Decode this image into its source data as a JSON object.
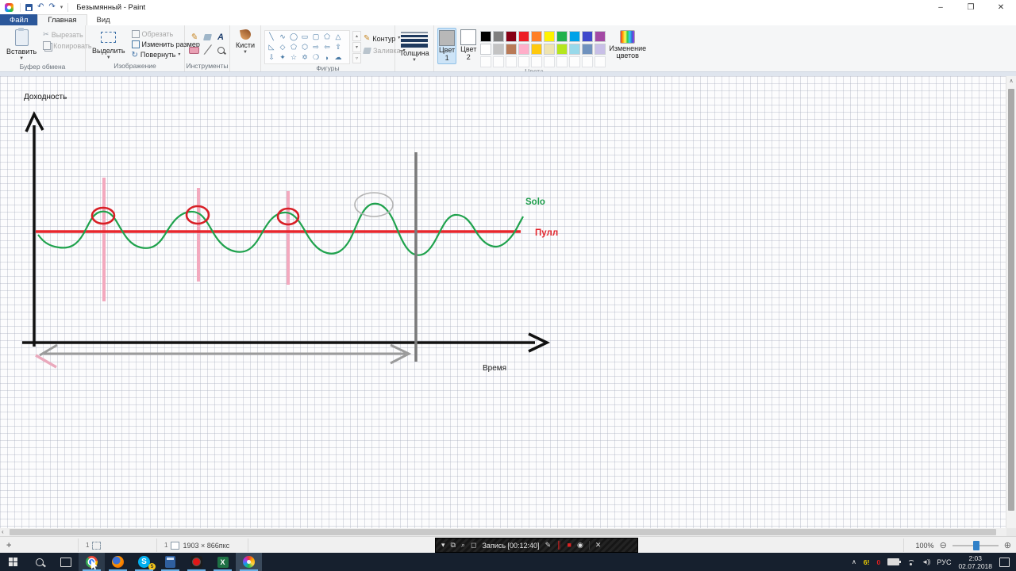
{
  "titlebar": {
    "title": "Безымянный - Paint"
  },
  "tabs": {
    "file": "Файл",
    "home": "Главная",
    "view": "Вид"
  },
  "ribbon": {
    "clipboard": {
      "label": "Буфер обмена",
      "paste": "Вставить",
      "cut": "Вырезать",
      "copy": "Копировать"
    },
    "image": {
      "label": "Изображение",
      "select": "Выделить",
      "crop": "Обрезать",
      "resize": "Изменить размер",
      "rotate": "Повернуть"
    },
    "tools": {
      "label": "Инструменты"
    },
    "brushes": {
      "label": "Кисти"
    },
    "shapes": {
      "label": "Фигуры",
      "outline": "Контур",
      "fill": "Заливка",
      "glyphs": [
        "╲",
        "∿",
        "◯",
        "▭",
        "▢",
        "⬠",
        "△",
        "◺",
        "◇",
        "⬠",
        "⬡",
        "⇨",
        "⇦",
        "⇧",
        "⇩",
        "✦",
        "☆",
        "✡",
        "❍",
        "◗",
        "☁"
      ]
    },
    "thickness": {
      "label": "Толщина"
    },
    "colors": {
      "label": "Цвета",
      "color1_line1": "Цвет",
      "color1_line2": "1",
      "color2_line1": "Цвет",
      "color2_line2": "2",
      "edit": "Изменение цветов",
      "color1_value": "#b8b8b8",
      "color2_value": "#ffffff",
      "palette_row1": [
        "#000000",
        "#7f7f7f",
        "#880015",
        "#ed1c24",
        "#ff7f27",
        "#fff200",
        "#22b14c",
        "#00a2e8",
        "#3f48cc",
        "#a349a4"
      ],
      "palette_row2": [
        "#ffffff",
        "#c3c3c3",
        "#b97a57",
        "#ffaec9",
        "#ffc90e",
        "#efe4b0",
        "#b5e61d",
        "#99d9ea",
        "#7092be",
        "#c8bfe7"
      ],
      "palette_row3": [
        "",
        "",
        "",
        "",
        "",
        "",
        "",
        "",
        "",
        ""
      ]
    }
  },
  "canvas": {
    "y_label": "Доходность",
    "x_label": "Время",
    "solo_label": "Solo",
    "pool_label": "Пулл",
    "colors": {
      "solo_green": "#1fa24d",
      "pool_red": "#e8262c",
      "pink": "#f3a9be",
      "gray_line": "#7a7a7a"
    }
  },
  "statusbar": {
    "image_size": "1903 × 866пкс",
    "zoom": "100%"
  },
  "recordbar": {
    "label": "Запись [00:12:40]"
  },
  "taskbar": {
    "apps": [
      "start",
      "search",
      "task-view",
      "chrome",
      "firefox",
      "skype",
      "calculator",
      "recorder",
      "excel",
      "paint"
    ],
    "skype_letter": "S",
    "skype_badge": "5",
    "excel_letter": "X",
    "tray": {
      "badge_yellow": "6!",
      "badge_red": "0",
      "lang": "РУС",
      "time": "2:03",
      "date": "02.07.2018"
    }
  }
}
